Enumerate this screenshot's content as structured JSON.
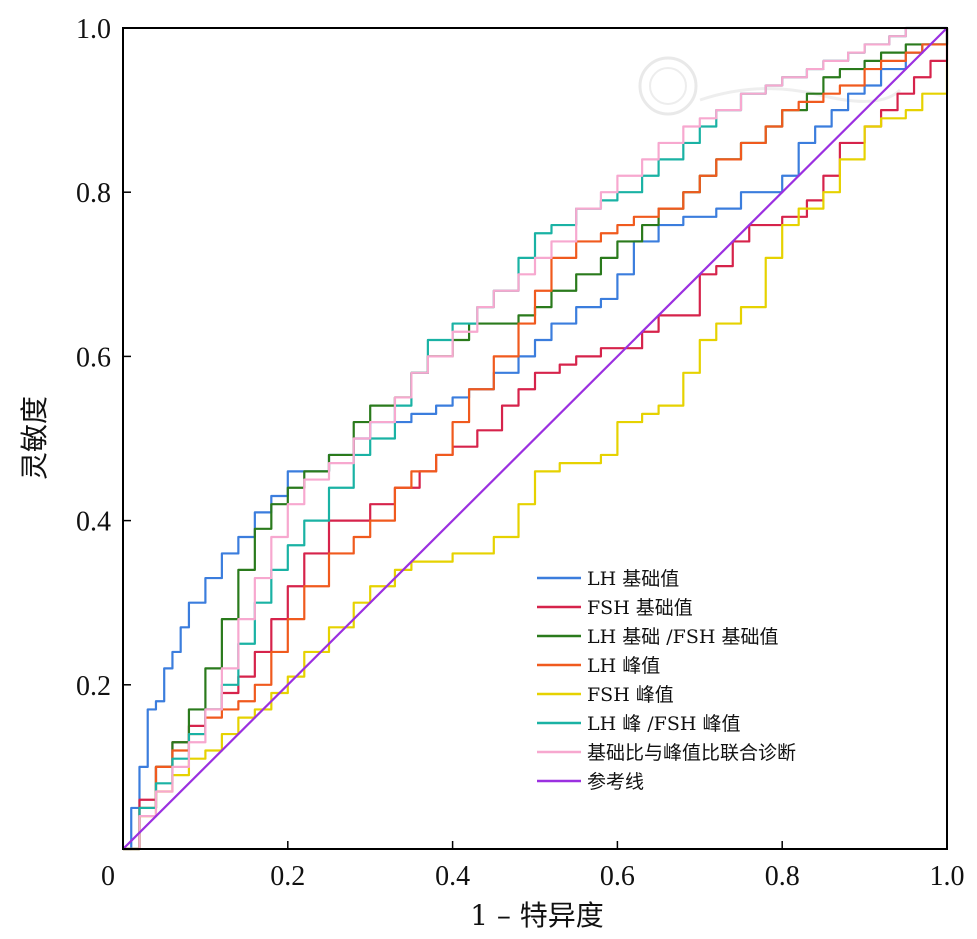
{
  "chart_data": {
    "type": "line",
    "title": "",
    "xlabel": "1 – 特异度",
    "ylabel": "灵敏度",
    "xlim": [
      0,
      1
    ],
    "ylim": [
      0,
      1
    ],
    "x_ticks": [
      "0",
      "0.2",
      "0.4",
      "0.6",
      "0.8",
      "1.0"
    ],
    "y_ticks": [
      "0.2",
      "0.4",
      "0.6",
      "0.8",
      "1.0"
    ],
    "grid": false,
    "legend_position": "lower-right",
    "series": [
      {
        "name": "LH 基础值",
        "color": "#3b7ddd",
        "x": [
          0,
          0.01,
          0.02,
          0.03,
          0.04,
          0.05,
          0.06,
          0.07,
          0.08,
          0.1,
          0.12,
          0.14,
          0.16,
          0.18,
          0.2,
          0.22,
          0.25,
          0.28,
          0.3,
          0.32,
          0.35,
          0.38,
          0.4,
          0.42,
          0.45,
          0.48,
          0.5,
          0.52,
          0.55,
          0.58,
          0.6,
          0.62,
          0.65,
          0.68,
          0.7,
          0.72,
          0.75,
          0.8,
          0.82,
          0.84,
          0.86,
          0.88,
          0.9,
          0.92,
          0.95,
          0.97,
          1.0
        ],
        "y": [
          0,
          0.05,
          0.1,
          0.17,
          0.18,
          0.22,
          0.24,
          0.27,
          0.3,
          0.33,
          0.36,
          0.38,
          0.41,
          0.43,
          0.46,
          0.46,
          0.48,
          0.5,
          0.52,
          0.52,
          0.53,
          0.54,
          0.55,
          0.56,
          0.58,
          0.6,
          0.62,
          0.64,
          0.66,
          0.67,
          0.7,
          0.74,
          0.76,
          0.77,
          0.77,
          0.78,
          0.8,
          0.82,
          0.86,
          0.88,
          0.9,
          0.92,
          0.93,
          0.95,
          0.97,
          0.98,
          1.0
        ]
      },
      {
        "name": "FSH 基础值",
        "color": "#d6234b",
        "x": [
          0,
          0.02,
          0.04,
          0.06,
          0.08,
          0.1,
          0.12,
          0.14,
          0.16,
          0.18,
          0.2,
          0.22,
          0.25,
          0.28,
          0.3,
          0.33,
          0.36,
          0.38,
          0.4,
          0.43,
          0.46,
          0.48,
          0.5,
          0.53,
          0.55,
          0.58,
          0.6,
          0.63,
          0.65,
          0.68,
          0.7,
          0.72,
          0.74,
          0.76,
          0.78,
          0.8,
          0.83,
          0.85,
          0.87,
          0.9,
          0.92,
          0.94,
          0.96,
          0.98,
          1.0
        ],
        "y": [
          0,
          0.06,
          0.1,
          0.13,
          0.15,
          0.17,
          0.19,
          0.21,
          0.24,
          0.28,
          0.32,
          0.36,
          0.4,
          0.4,
          0.42,
          0.44,
          0.46,
          0.48,
          0.49,
          0.51,
          0.54,
          0.56,
          0.58,
          0.59,
          0.6,
          0.61,
          0.61,
          0.63,
          0.65,
          0.65,
          0.7,
          0.71,
          0.74,
          0.76,
          0.76,
          0.77,
          0.79,
          0.82,
          0.86,
          0.88,
          0.9,
          0.92,
          0.94,
          0.96,
          0.98
        ]
      },
      {
        "name": "LH 基础 /FSH 基础值",
        "color": "#2a7a1c",
        "x": [
          0,
          0.02,
          0.04,
          0.06,
          0.08,
          0.1,
          0.12,
          0.14,
          0.16,
          0.18,
          0.2,
          0.22,
          0.25,
          0.28,
          0.3,
          0.33,
          0.35,
          0.37,
          0.4,
          0.42,
          0.45,
          0.48,
          0.5,
          0.52,
          0.55,
          0.58,
          0.6,
          0.63,
          0.65,
          0.68,
          0.7,
          0.72,
          0.75,
          0.78,
          0.8,
          0.83,
          0.85,
          0.87,
          0.9,
          0.92,
          0.95,
          1.0
        ],
        "y": [
          0,
          0.05,
          0.1,
          0.13,
          0.17,
          0.22,
          0.28,
          0.34,
          0.39,
          0.42,
          0.44,
          0.46,
          0.48,
          0.52,
          0.54,
          0.55,
          0.58,
          0.6,
          0.62,
          0.64,
          0.64,
          0.65,
          0.66,
          0.68,
          0.7,
          0.72,
          0.74,
          0.76,
          0.78,
          0.8,
          0.82,
          0.84,
          0.86,
          0.88,
          0.9,
          0.92,
          0.94,
          0.95,
          0.96,
          0.97,
          0.98,
          1.0
        ]
      },
      {
        "name": "LH 峰值",
        "color": "#f05a1e",
        "x": [
          0,
          0.02,
          0.04,
          0.06,
          0.08,
          0.1,
          0.12,
          0.14,
          0.16,
          0.18,
          0.2,
          0.22,
          0.25,
          0.28,
          0.3,
          0.33,
          0.35,
          0.38,
          0.4,
          0.42,
          0.45,
          0.48,
          0.5,
          0.52,
          0.55,
          0.58,
          0.6,
          0.62,
          0.65,
          0.68,
          0.7,
          0.72,
          0.75,
          0.78,
          0.8,
          0.82,
          0.85,
          0.87,
          0.9,
          0.92,
          0.95,
          0.97,
          1.0
        ],
        "y": [
          0,
          0.05,
          0.1,
          0.12,
          0.14,
          0.16,
          0.17,
          0.18,
          0.2,
          0.24,
          0.28,
          0.32,
          0.36,
          0.38,
          0.4,
          0.44,
          0.46,
          0.48,
          0.52,
          0.56,
          0.6,
          0.64,
          0.68,
          0.72,
          0.74,
          0.75,
          0.76,
          0.77,
          0.78,
          0.8,
          0.82,
          0.84,
          0.86,
          0.88,
          0.9,
          0.91,
          0.92,
          0.93,
          0.95,
          0.96,
          0.97,
          0.98,
          1.0
        ]
      },
      {
        "name": "FSH 峰值",
        "color": "#e6d200",
        "x": [
          0,
          0.02,
          0.04,
          0.06,
          0.08,
          0.1,
          0.12,
          0.14,
          0.16,
          0.18,
          0.2,
          0.22,
          0.25,
          0.28,
          0.3,
          0.33,
          0.35,
          0.38,
          0.4,
          0.43,
          0.45,
          0.48,
          0.5,
          0.53,
          0.55,
          0.58,
          0.6,
          0.63,
          0.65,
          0.68,
          0.7,
          0.72,
          0.75,
          0.78,
          0.8,
          0.82,
          0.85,
          0.87,
          0.9,
          0.92,
          0.95,
          0.97,
          1.0
        ],
        "y": [
          0,
          0.04,
          0.07,
          0.09,
          0.11,
          0.12,
          0.14,
          0.16,
          0.17,
          0.19,
          0.21,
          0.24,
          0.27,
          0.3,
          0.32,
          0.34,
          0.35,
          0.35,
          0.36,
          0.36,
          0.38,
          0.42,
          0.46,
          0.47,
          0.47,
          0.48,
          0.52,
          0.53,
          0.54,
          0.58,
          0.62,
          0.64,
          0.66,
          0.72,
          0.76,
          0.78,
          0.8,
          0.84,
          0.88,
          0.89,
          0.9,
          0.92,
          0.96
        ]
      },
      {
        "name": "LH 峰 /FSH 峰值",
        "color": "#1ab2a4",
        "x": [
          0,
          0.02,
          0.04,
          0.06,
          0.08,
          0.1,
          0.12,
          0.14,
          0.16,
          0.18,
          0.2,
          0.22,
          0.25,
          0.28,
          0.3,
          0.33,
          0.35,
          0.37,
          0.4,
          0.43,
          0.45,
          0.48,
          0.5,
          0.52,
          0.55,
          0.58,
          0.6,
          0.63,
          0.65,
          0.68,
          0.7,
          0.72,
          0.75,
          0.78,
          0.8,
          0.83,
          0.85,
          0.88,
          0.9,
          0.93,
          0.95,
          0.97,
          1.0
        ],
        "y": [
          0,
          0.05,
          0.08,
          0.11,
          0.14,
          0.17,
          0.2,
          0.25,
          0.3,
          0.34,
          0.37,
          0.4,
          0.44,
          0.48,
          0.5,
          0.54,
          0.58,
          0.62,
          0.64,
          0.66,
          0.68,
          0.72,
          0.75,
          0.76,
          0.78,
          0.79,
          0.8,
          0.82,
          0.84,
          0.86,
          0.88,
          0.9,
          0.92,
          0.93,
          0.94,
          0.95,
          0.96,
          0.97,
          0.98,
          0.99,
          1.0,
          1.0,
          1.0
        ]
      },
      {
        "name": "基础比与峰值比联合诊断",
        "color": "#f7a8cf",
        "x": [
          0,
          0.02,
          0.04,
          0.06,
          0.08,
          0.1,
          0.12,
          0.14,
          0.16,
          0.18,
          0.2,
          0.22,
          0.25,
          0.28,
          0.3,
          0.33,
          0.35,
          0.37,
          0.4,
          0.43,
          0.45,
          0.48,
          0.5,
          0.52,
          0.55,
          0.58,
          0.6,
          0.63,
          0.65,
          0.68,
          0.7,
          0.72,
          0.75,
          0.78,
          0.8,
          0.83,
          0.85,
          0.88,
          0.9,
          0.93,
          0.95,
          0.97,
          1.0
        ],
        "y": [
          0,
          0.04,
          0.07,
          0.1,
          0.13,
          0.17,
          0.22,
          0.28,
          0.33,
          0.38,
          0.42,
          0.45,
          0.47,
          0.5,
          0.52,
          0.55,
          0.58,
          0.6,
          0.63,
          0.66,
          0.68,
          0.7,
          0.72,
          0.74,
          0.78,
          0.8,
          0.82,
          0.84,
          0.86,
          0.88,
          0.89,
          0.9,
          0.92,
          0.93,
          0.94,
          0.95,
          0.96,
          0.97,
          0.98,
          0.99,
          1.0,
          1.0,
          1.0
        ]
      },
      {
        "name": "参考线",
        "color": "#9b30e0",
        "x": [
          0,
          1
        ],
        "y": [
          0,
          1
        ]
      }
    ]
  }
}
